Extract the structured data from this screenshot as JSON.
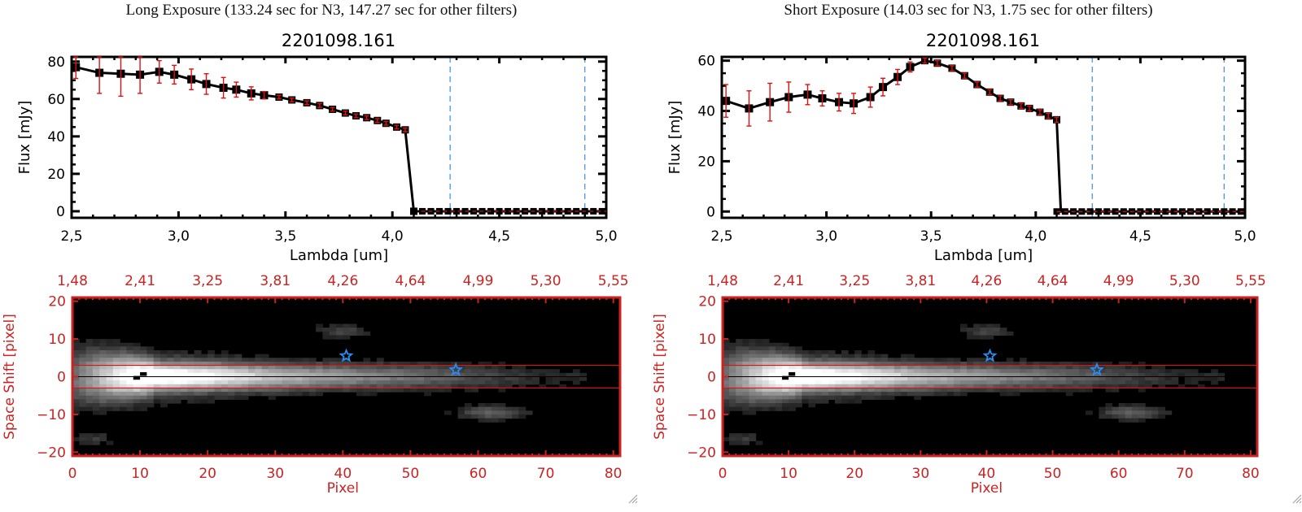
{
  "panels": [
    {
      "exposure_title": "Long Exposure (133.24 sec for N3, 147.27 sec for other filters)",
      "spectrum": {
        "title": "2201098.161",
        "xlabel": "Lambda [um]",
        "ylabel": "Flux [mJy]",
        "xticks": [
          "2.5",
          "3.0",
          "3.5",
          "4.0",
          "4.5",
          "5.0"
        ],
        "yticks": [
          "0",
          "20",
          "40",
          "60",
          "80"
        ]
      },
      "image": {
        "xlabel": "Pixel",
        "ylabel": "Space Shift [pixel]",
        "xticks": [
          "0",
          "10",
          "20",
          "30",
          "40",
          "50",
          "60",
          "70",
          "80"
        ],
        "yticks": [
          "20",
          "10",
          "0",
          "-10",
          "-20"
        ],
        "top_ticks": [
          "1.48",
          "2.41",
          "3.25",
          "3.81",
          "4.26",
          "4.64",
          "4.99",
          "5.30",
          "5.55"
        ]
      }
    },
    {
      "exposure_title": "Short Exposure (14.03 sec for N3, 1.75 sec for other filters)",
      "spectrum": {
        "title": "2201098.161",
        "xlabel": "Lambda [um]",
        "ylabel": "Flux [mJy]",
        "xticks": [
          "2.5",
          "3.0",
          "3.5",
          "4.0",
          "4.5",
          "5.0"
        ],
        "yticks": [
          "0",
          "20",
          "40",
          "60"
        ]
      },
      "image": {
        "xlabel": "Pixel",
        "ylabel": "Space Shift [pixel]",
        "xticks": [
          "0",
          "10",
          "20",
          "30",
          "40",
          "50",
          "60",
          "70",
          "80"
        ],
        "yticks": [
          "20",
          "10",
          "0",
          "-10",
          "-20"
        ],
        "top_ticks": [
          "1.48",
          "2.41",
          "3.25",
          "3.81",
          "4.26",
          "4.64",
          "4.99",
          "5.30",
          "5.55"
        ]
      }
    }
  ],
  "colors": {
    "line": "#000000",
    "errorbar": "#e01010",
    "marker": "#000000",
    "vline": "#3a8ee6",
    "zero_line": "#e01010",
    "image_frame": "#cc2222",
    "aperture": "#dd1111",
    "star": "#2a8cf0"
  },
  "chart_data": [
    {
      "type": "line",
      "title": "2201098.161",
      "xlabel": "Lambda [um]",
      "ylabel": "Flux [mJy]",
      "xlim": [
        2.5,
        5.0
      ],
      "ylim": [
        -3.5,
        82.5
      ],
      "vlines": [
        4.27,
        4.9
      ],
      "x": [
        2.52,
        2.63,
        2.73,
        2.82,
        2.91,
        2.98,
        3.06,
        3.13,
        3.21,
        3.27,
        3.34,
        3.4,
        3.47,
        3.53,
        3.6,
        3.66,
        3.72,
        3.78,
        3.83,
        3.88,
        3.93,
        3.97,
        4.02,
        4.06,
        4.1
      ],
      "y": [
        77,
        74,
        73.5,
        73,
        74.5,
        73,
        70.5,
        68,
        66,
        65,
        63,
        62,
        61,
        59.5,
        58,
        56.5,
        54.5,
        52.5,
        51,
        50,
        48.5,
        47,
        45,
        43.5,
        0
      ],
      "yerr": [
        6,
        11,
        12,
        10,
        6,
        5,
        5.5,
        5.5,
        5.5,
        4,
        3.5,
        2,
        1,
        1,
        1,
        1,
        1,
        1,
        1,
        1,
        1,
        1,
        1,
        1,
        0
      ],
      "zero_points_from": 4.1,
      "zero_points_to": 4.98
    },
    {
      "type": "line",
      "title": "2201098.161",
      "xlabel": "Lambda [um]",
      "ylabel": "Flux [mJy]",
      "xlim": [
        2.5,
        5.0
      ],
      "ylim": [
        -2.5,
        61.5
      ],
      "vlines": [
        4.27,
        4.9
      ],
      "x": [
        2.52,
        2.63,
        2.73,
        2.82,
        2.91,
        2.98,
        3.06,
        3.13,
        3.21,
        3.27,
        3.34,
        3.4,
        3.47,
        3.53,
        3.6,
        3.66,
        3.72,
        3.78,
        3.83,
        3.88,
        3.93,
        3.97,
        4.02,
        4.06,
        4.1
      ],
      "y": [
        44,
        41,
        43.5,
        45.5,
        46.5,
        45,
        43.5,
        43,
        45.5,
        49.5,
        53.5,
        57.5,
        60,
        59,
        57,
        54,
        50.5,
        47.5,
        45,
        43.5,
        42,
        41,
        39.5,
        38,
        36.5
      ],
      "yerr": [
        6.5,
        7,
        7.5,
        6,
        4,
        3,
        3.5,
        4,
        4,
        3.5,
        3,
        2,
        1,
        1,
        1,
        1,
        1,
        1,
        1,
        1,
        1,
        1,
        1,
        1,
        1
      ],
      "zero_points_from": 4.1,
      "zero_points_to": 4.98
    }
  ]
}
